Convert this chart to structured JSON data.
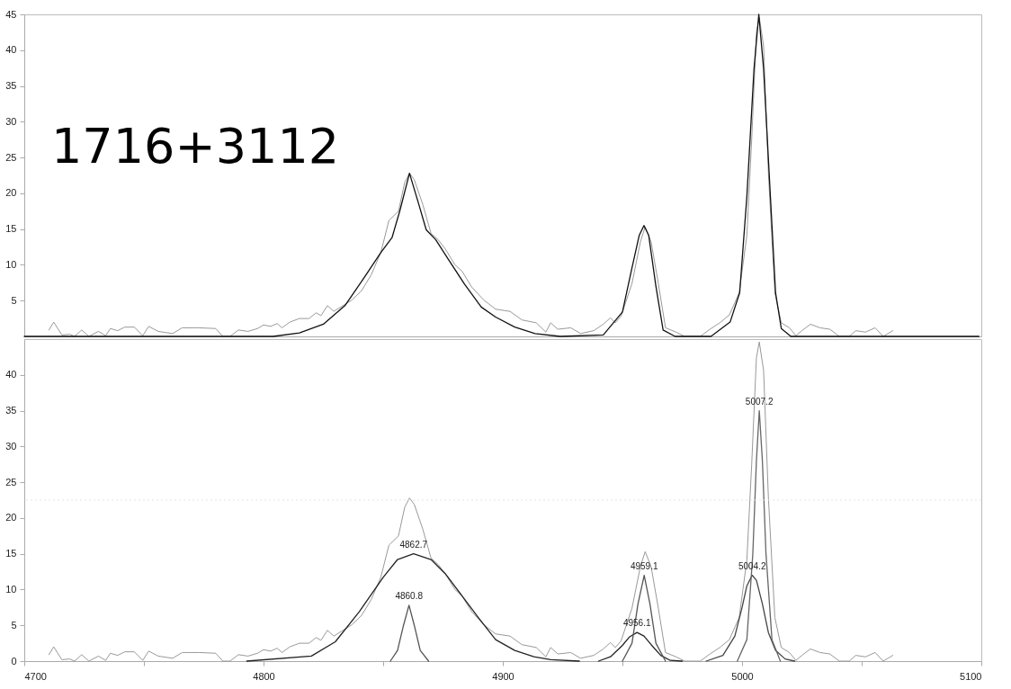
{
  "chart_data": [
    {
      "type": "line",
      "xlim": [
        4700,
        5100
      ],
      "ylim": [
        0,
        45
      ],
      "yticks": [
        5,
        10,
        15,
        20,
        25,
        30,
        35,
        40,
        45
      ],
      "tick_labels": "y",
      "annotations": [
        "1716+3112"
      ],
      "series": [
        {
          "color": "#999999",
          "x": [
            4710.3,
            4712.3,
            4715.7,
            4719,
            4721,
            4724,
            4727,
            4731,
            4734,
            4736,
            4739,
            4742,
            4746,
            4749.5,
            4752,
            4756,
            4762,
            4766,
            4773,
            4780,
            4783,
            4786,
            4789.5,
            4793.5,
            4797.5,
            4800,
            4803,
            4805.7,
            4807.7,
            4811,
            4815,
            4819,
            4822,
            4824,
            4826.7,
            4829.4,
            4832.7,
            4837,
            4841,
            4845,
            4849,
            4852.4,
            4856.4,
            4859,
            4861,
            4863,
            4866.6,
            4870,
            4873,
            4876,
            4880,
            4883,
            4887,
            4892,
            4897,
            4903,
            4908,
            4914,
            4918,
            4920,
            4923,
            4928.4,
            4932.5,
            4938,
            4942,
            4945,
            4947,
            4949.4,
            4954,
            4957.5,
            4959.5,
            4962,
            4965,
            4968,
            4972.4,
            4976,
            4982.5,
            4986.6,
            4990.7,
            4994.7,
            4998.8,
            5002,
            5004,
            5006,
            5007.2,
            5009,
            5011,
            5013.7,
            5016.4,
            5019.8,
            5022.5,
            5025,
            5028.6,
            5032.6,
            5036.7,
            5040.7,
            5044.8,
            5047.5,
            5051.6,
            5055.6,
            5059,
            5063
          ],
          "values": [
            0.9,
            2.0,
            0.2,
            0.3,
            0,
            0.9,
            0,
            0.7,
            0.1,
            1.1,
            0.8,
            1.3,
            1.3,
            0.1,
            1.4,
            0.7,
            0.4,
            1.2,
            1.2,
            1.1,
            0,
            0,
            0.9,
            0.7,
            1.1,
            1.6,
            1.4,
            1.8,
            1.2,
            2.0,
            2.5,
            2.5,
            3.3,
            2.9,
            4.3,
            3.5,
            4.2,
            5.1,
            6.4,
            8.6,
            11.7,
            16.2,
            17.5,
            21.5,
            22.8,
            21.9,
            18.4,
            14.4,
            13.5,
            12.2,
            10,
            9.1,
            6.9,
            5.1,
            3.8,
            3.5,
            2.3,
            1.9,
            0.6,
            1.9,
            1.0,
            1.2,
            0.4,
            0.8,
            1.7,
            2.6,
            1.9,
            2.8,
            7.4,
            13.2,
            15.3,
            13.2,
            7.4,
            1.2,
            0.6,
            0,
            0,
            1.0,
            1.9,
            3.0,
            6.1,
            14.1,
            27.3,
            42.4,
            44.6,
            40.6,
            22.9,
            6.1,
            1.9,
            1.2,
            0.1,
            0.8,
            1.7,
            1.2,
            1.0,
            0,
            0,
            0.8,
            0.6,
            1.2,
            0,
            0.8
          ]
        },
        {
          "color": "#111111",
          "x": [
            4700,
            4804,
            4815,
            4825,
            4834,
            4842,
            4849,
            4853.7,
            4857,
            4861,
            4864.5,
            4868,
            4872,
            4877,
            4884,
            4891,
            4897,
            4905,
            4913.5,
            4924,
            4942,
            4950,
            4954,
            4957,
            4959,
            4961,
            4964,
            4967,
            4972,
            4987,
            4995,
            4999,
            5002,
            5005,
            5007,
            5009,
            5012,
            5014,
            5016.4,
            5020.4,
            5099
          ],
          "values": [
            0,
            0,
            0.5,
            1.7,
            4.3,
            8.2,
            11.7,
            13.8,
            17.6,
            22.8,
            18.9,
            14.9,
            13.5,
            10.9,
            7.3,
            4.1,
            2.7,
            1.3,
            0.4,
            0,
            0.2,
            3.4,
            9.6,
            14.1,
            15.5,
            14.1,
            7,
            0.9,
            0,
            0,
            2.0,
            6.1,
            19.5,
            37.4,
            45,
            37.4,
            18.6,
            6.1,
            1.1,
            0,
            0
          ]
        }
      ]
    },
    {
      "type": "line",
      "xlim": [
        4700,
        5100
      ],
      "ylim": [
        0,
        45
      ],
      "yticks": [
        0,
        5,
        10,
        15,
        20,
        25,
        30,
        35,
        40
      ],
      "xticks": [
        4700,
        {
          "value": 4750,
          "label": null
        },
        4800,
        {
          "value": 4850,
          "label": null
        },
        4900,
        {
          "value": 4950,
          "label": null
        },
        5000,
        {
          "value": 5050,
          "label": null
        },
        5100
      ],
      "ref_lines": [
        {
          "axis": "y",
          "value": 22.5,
          "color": "#e4e4e4",
          "line_style": "dotted"
        }
      ],
      "annotations": [
        {
          "text": "4862.7",
          "x": 4862.7,
          "y": 15
        },
        {
          "text": "4860.8",
          "x": 4860.8,
          "y": 7.8
        },
        {
          "text": "4956.1",
          "x": 4956.1,
          "y": 4
        },
        {
          "text": "4959.1",
          "x": 4959.1,
          "y": 12
        },
        {
          "text": "5004.2",
          "x": 5004.2,
          "y": 12
        },
        {
          "text": "5007.2",
          "x": 5007.2,
          "y": 35
        }
      ],
      "series": [
        {
          "color": "#999999",
          "x": [
            4710.3,
            4712.3,
            4715.7,
            4719,
            4721,
            4724,
            4727,
            4731,
            4734,
            4736,
            4739,
            4742,
            4746,
            4749.5,
            4752,
            4756,
            4762,
            4766,
            4773,
            4780,
            4783,
            4786,
            4789.5,
            4793.5,
            4797.5,
            4800,
            4803,
            4805.7,
            4807.7,
            4811,
            4815,
            4819,
            4822,
            4824,
            4826.7,
            4829.4,
            4832.7,
            4837,
            4841,
            4845,
            4849,
            4852.4,
            4856.4,
            4859,
            4861,
            4863,
            4866.6,
            4870,
            4873,
            4876,
            4880,
            4883,
            4887,
            4892,
            4897,
            4903,
            4908,
            4914,
            4918,
            4920,
            4923,
            4928.4,
            4932.5,
            4938,
            4942,
            4945,
            4947,
            4949.4,
            4954,
            4957.5,
            4959.5,
            4962,
            4965,
            4968,
            4972.4,
            4976,
            4982.5,
            4986.6,
            4990.7,
            4994.7,
            4998.8,
            5002,
            5004,
            5006,
            5007.2,
            5009,
            5011,
            5013.7,
            5016.4,
            5019.8,
            5022.5,
            5025,
            5028.6,
            5032.6,
            5036.7,
            5040.7,
            5044.8,
            5047.5,
            5051.6,
            5055.6,
            5059,
            5063
          ],
          "values": [
            0.9,
            2.0,
            0.2,
            0.3,
            0,
            0.9,
            0,
            0.7,
            0.1,
            1.1,
            0.8,
            1.3,
            1.3,
            0.1,
            1.4,
            0.7,
            0.4,
            1.2,
            1.2,
            1.1,
            0,
            0,
            0.9,
            0.7,
            1.1,
            1.6,
            1.4,
            1.8,
            1.2,
            2.0,
            2.5,
            2.5,
            3.3,
            2.9,
            4.3,
            3.5,
            4.2,
            5.1,
            6.4,
            8.6,
            11.7,
            16.2,
            17.5,
            21.5,
            22.8,
            21.9,
            18.4,
            14.4,
            13.5,
            12.2,
            10,
            9.1,
            6.9,
            5.1,
            3.8,
            3.5,
            2.3,
            1.9,
            0.6,
            1.9,
            1.0,
            1.2,
            0.4,
            0.8,
            1.7,
            2.6,
            1.9,
            2.8,
            7.4,
            13.2,
            15.3,
            13.2,
            7.4,
            1.2,
            0.6,
            0,
            0,
            1.0,
            1.9,
            3.0,
            6.1,
            14.1,
            27.3,
            42.4,
            44.6,
            40.6,
            22.9,
            6.1,
            1.9,
            1.2,
            0.1,
            0.8,
            1.7,
            1.2,
            1.0,
            0,
            0,
            0.8,
            0.6,
            1.2,
            0,
            0.8
          ]
        },
        {
          "color": "#222222",
          "x": [
            4793,
            4820,
            4830,
            4840,
            4850,
            4856,
            4862.7,
            4870,
            4876,
            4883,
            4890,
            4897,
            4905,
            4913,
            4920,
            4932
          ],
          "values": [
            0,
            0.7,
            2.7,
            6.9,
            11.7,
            14.2,
            15,
            14.2,
            12.2,
            9.1,
            6.0,
            3.0,
            1.5,
            0.6,
            0.2,
            0
          ]
        },
        {
          "color": "#555555",
          "x": [
            4853,
            4856,
            4858.5,
            4860.8,
            4863,
            4865.5,
            4869
          ],
          "values": [
            0,
            1.5,
            5,
            7.8,
            5,
            1.5,
            0
          ]
        },
        {
          "color": "#222222",
          "x": [
            4940,
            4945,
            4950,
            4953,
            4956.1,
            4959,
            4962,
            4966,
            4970,
            4975
          ],
          "values": [
            0,
            0.6,
            2.2,
            3.4,
            4,
            3.5,
            2.3,
            0.8,
            0.1,
            0
          ]
        },
        {
          "color": "#555555",
          "x": [
            4950,
            4954,
            4956.5,
            4959.1,
            4961.5,
            4964,
            4968
          ],
          "values": [
            0,
            2.5,
            8,
            12,
            8,
            2.5,
            0
          ]
        },
        {
          "color": "#444444",
          "x": [
            4985,
            4992,
            4997,
            5000,
            5002,
            5004.2,
            5006,
            5008.5,
            5011,
            5014,
            5018,
            5022
          ],
          "values": [
            0,
            0.8,
            3.5,
            7.5,
            10.5,
            12,
            11.3,
            8,
            4,
            1.5,
            0.3,
            0
          ]
        },
        {
          "color": "#666666",
          "x": [
            4998,
            5002,
            5004.5,
            5006,
            5007.2,
            5008.5,
            5010,
            5012.5,
            5016
          ],
          "values": [
            0,
            3,
            15,
            28,
            35,
            28,
            15,
            3,
            0
          ]
        }
      ]
    }
  ]
}
